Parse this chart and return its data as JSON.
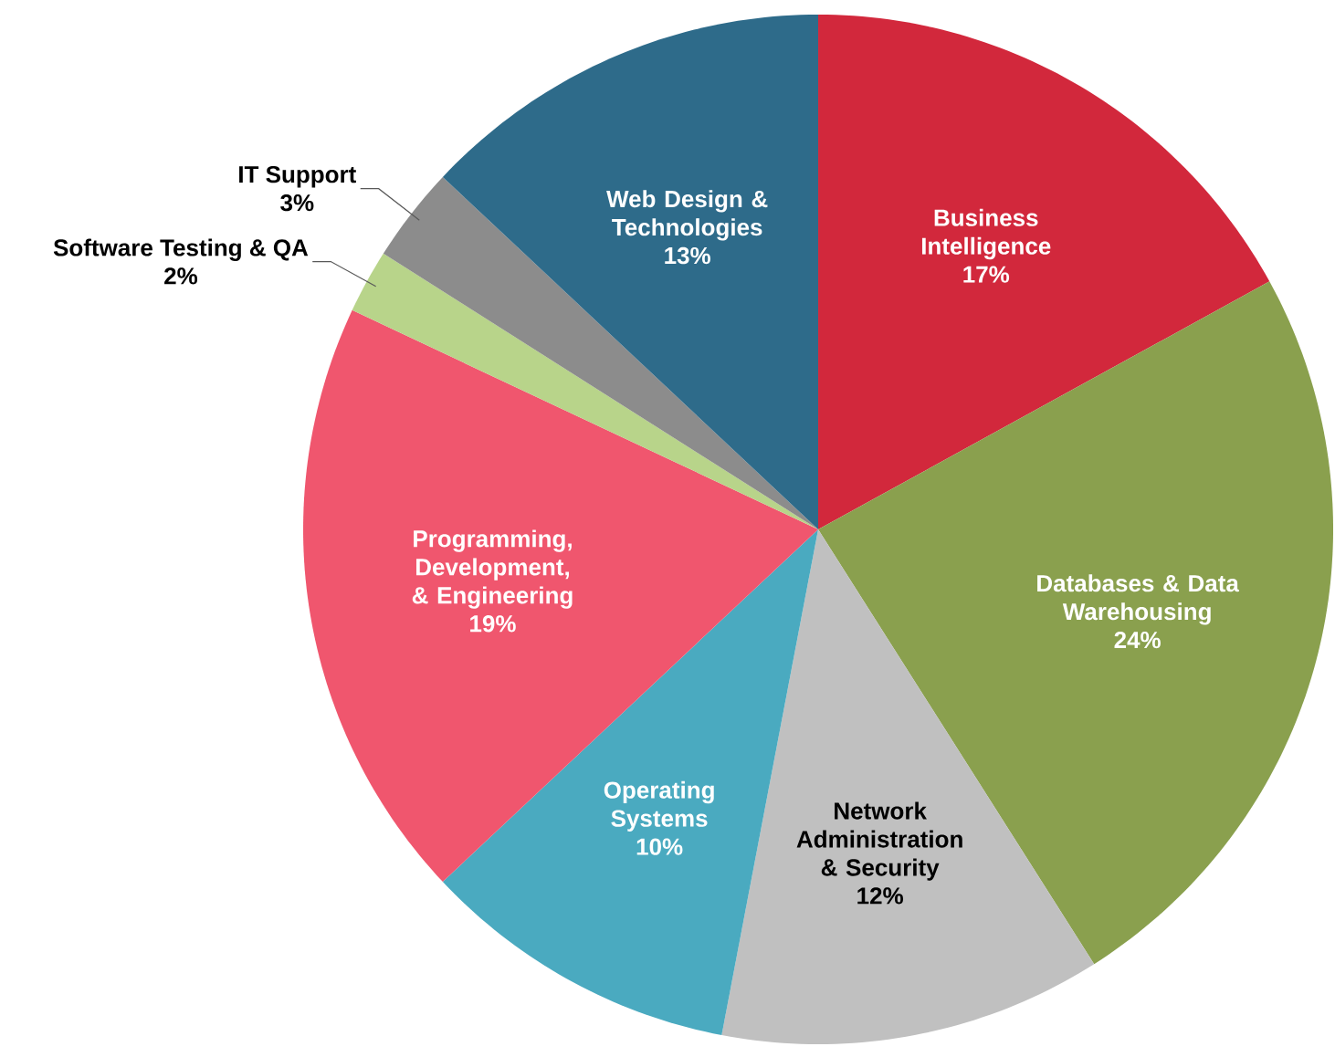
{
  "chart_data": {
    "type": "pie",
    "categories": [
      "Business Intelligence",
      "Databases & Data Warehousing",
      "Network Administration & Security",
      "Operating Systems",
      "Programming, Development, & Engineering",
      "Software Testing & QA",
      "IT Support",
      "Web Design & Technologies"
    ],
    "values": [
      17,
      24,
      12,
      10,
      19,
      2,
      3,
      13
    ],
    "value_labels": [
      "17%",
      "24%",
      "12%",
      "10%",
      "19%",
      "2%",
      "3%",
      "13%"
    ],
    "colors": [
      "#d2283c",
      "#8aa04e",
      "#c0c0c0",
      "#4aaac0",
      "#f0566e",
      "#b8d48a",
      "#8c8c8c",
      "#2e6b8a"
    ]
  }
}
